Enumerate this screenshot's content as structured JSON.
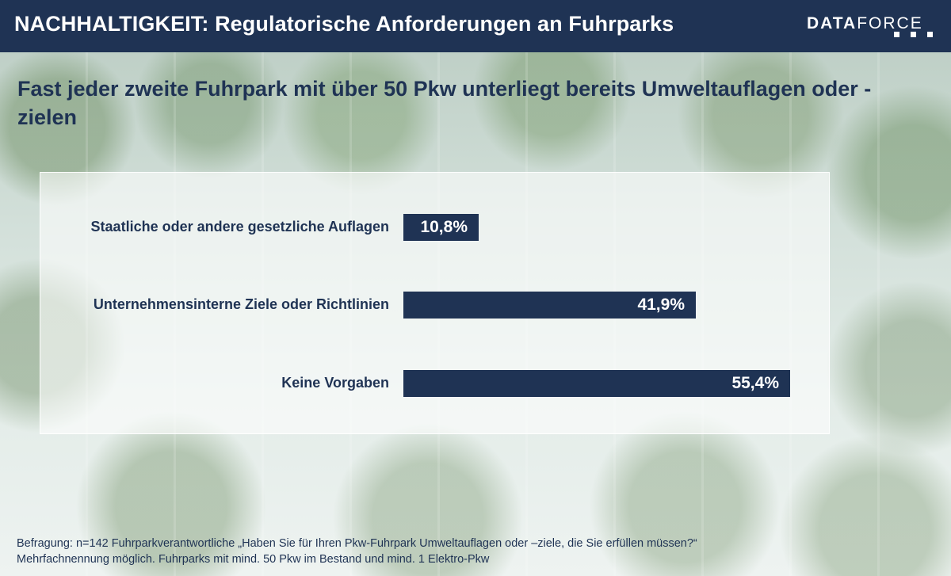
{
  "header": {
    "title": "NACHHALTIGKEIT: Regulatorische Anforderungen an Fuhrparks",
    "logo_bold": "DATA",
    "logo_light": "FORCE",
    "colors": {
      "header_bg": "#1f3354",
      "bar": "#1f3354"
    }
  },
  "subtitle": "Fast jeder zweite Fuhrpark mit über 50 Pkw unterliegt bereits Umweltauflagen oder -zielen",
  "chart_data": {
    "type": "bar",
    "orientation": "horizontal",
    "categories": [
      "Staatliche oder andere gesetzliche Auflagen",
      "Unternehmensinterne Ziele oder Richtlinien",
      "Keine Vorgaben"
    ],
    "values": [
      10.8,
      41.9,
      55.4
    ],
    "value_labels": [
      "10,8%",
      "41,9%",
      "55,4%"
    ],
    "xlim": [
      0,
      100
    ],
    "grid": false,
    "legend": "none"
  },
  "footnote": {
    "line1": "Befragung: n=142 Fuhrparkverantwortliche „Haben Sie für Ihren Pkw-Fuhrpark Umweltauflagen oder –ziele, die Sie erfüllen müssen?“",
    "line2": "Mehrfachnennung möglich. Fuhrparks mit mind. 50 Pkw im Bestand und mind. 1 Elektro-Pkw"
  }
}
